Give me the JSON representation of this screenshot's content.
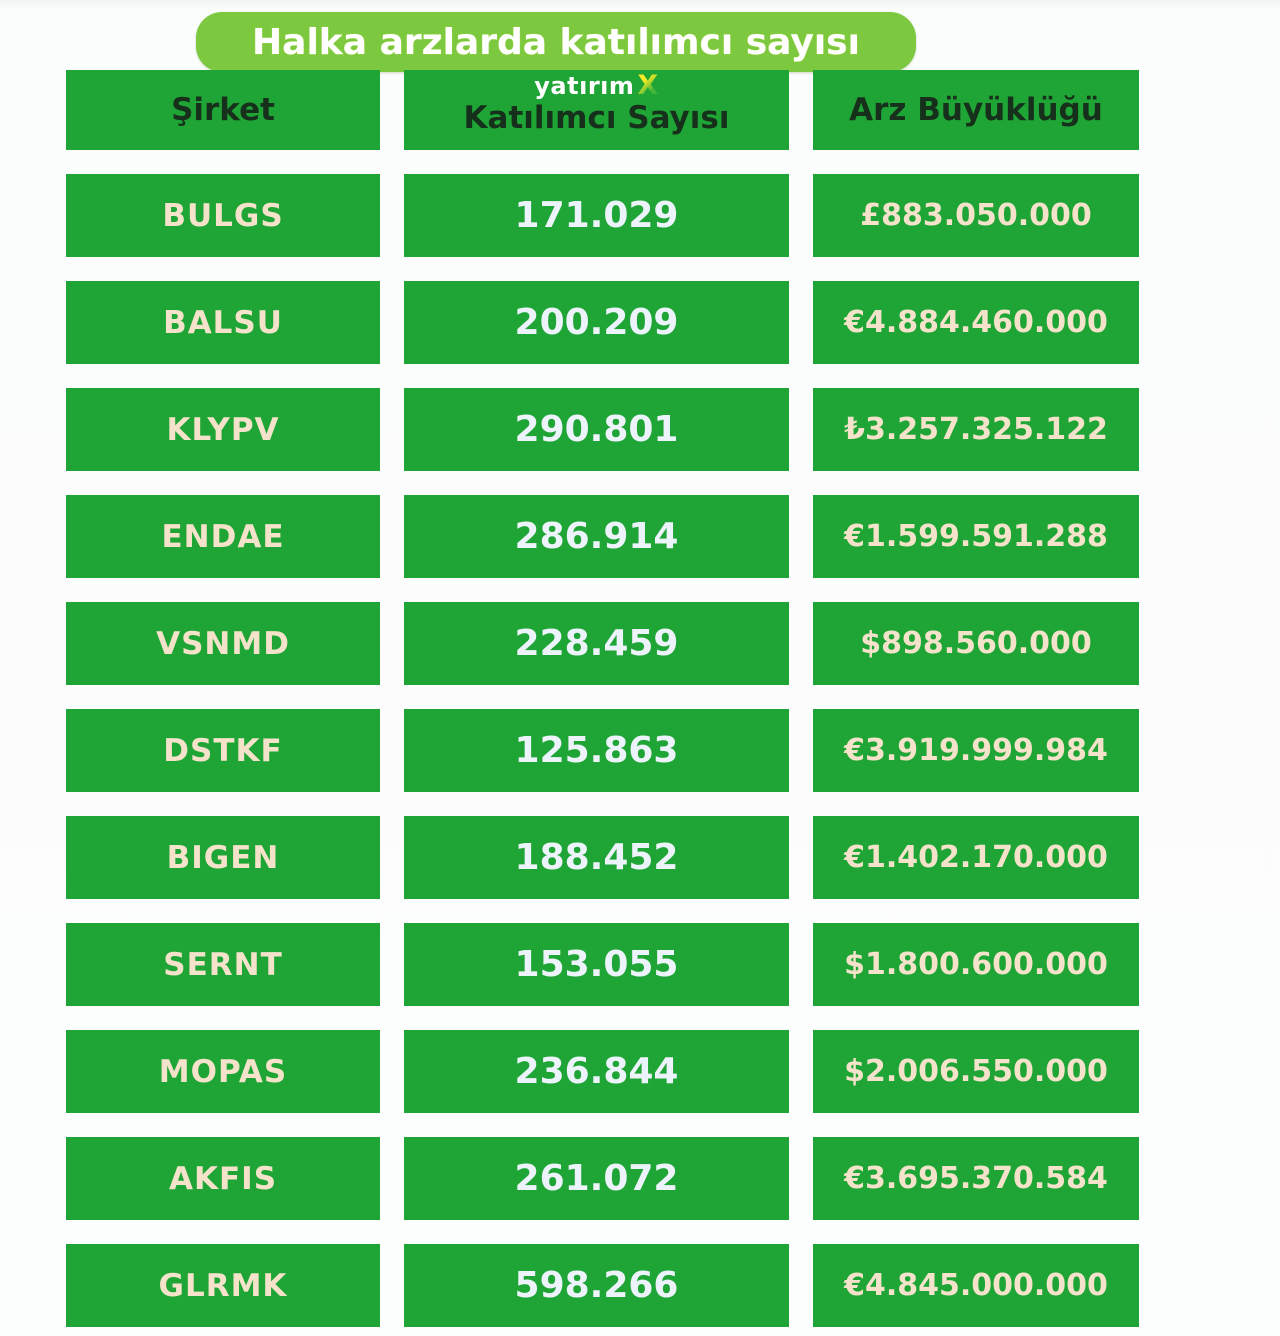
{
  "title": "Halka arzlarda katılımcı sayısı",
  "logo": {
    "text": "yatırım",
    "x": "X"
  },
  "table": {
    "headers": [
      "Şirket",
      "Katılımcı Sayısı",
      "Arz Büyüklüğü"
    ],
    "rows": [
      {
        "company": "BULGS",
        "participants": "171.029",
        "size": "£883.050.000"
      },
      {
        "company": "BALSU",
        "participants": "200.209",
        "size": "€4.884.460.000"
      },
      {
        "company": "KLYPV",
        "participants": "290.801",
        "size": "₺3.257.325.122"
      },
      {
        "company": "ENDAE",
        "participants": "286.914",
        "size": "€1.599.591.288"
      },
      {
        "company": "VSNMD",
        "participants": "228.459",
        "size": "$898.560.000"
      },
      {
        "company": "DSTKF",
        "participants": "125.863",
        "size": "€3.919.999.984"
      },
      {
        "company": "BIGEN",
        "participants": "188.452",
        "size": "€1.402.170.000"
      },
      {
        "company": "SERNT",
        "participants": "153.055",
        "size": "$1.800.600.000"
      },
      {
        "company": "MOPAS",
        "participants": "236.844",
        "size": "$2.006.550.000"
      },
      {
        "company": "AKFIS",
        "participants": "261.072",
        "size": "€3.695.370.584"
      },
      {
        "company": "GLRMK",
        "participants": "598.266",
        "size": "€4.845.000.000"
      }
    ]
  },
  "colors": {
    "cell_green": "#1fa535",
    "bubble_green": "#7cc83e",
    "header_text": "#16301b",
    "cream_text": "#f4e2ca",
    "number_text": "#edf3fb",
    "logo_x_yellow": "#f5ea24",
    "logo_x_green": "#44b63a",
    "background": "#fbfcfc"
  },
  "chart_data": {
    "type": "table",
    "title": "Halka arzlarda katılımcı sayısı",
    "columns": [
      "Şirket",
      "Katılımcı Sayısı",
      "Arz Büyüklüğü"
    ],
    "rows": [
      [
        "BULGS",
        "171.029",
        "£883.050.000"
      ],
      [
        "BALSU",
        "200.209",
        "€4.884.460.000"
      ],
      [
        "KLYPV",
        "290.801",
        "₺3.257.325.122"
      ],
      [
        "ENDAE",
        "286.914",
        "€1.599.591.288"
      ],
      [
        "VSNMD",
        "228.459",
        "$898.560.000"
      ],
      [
        "DSTKF",
        "125.863",
        "€3.919.999.984"
      ],
      [
        "BIGEN",
        "188.452",
        "€1.402.170.000"
      ],
      [
        "SERNT",
        "153.055",
        "$1.800.600.000"
      ],
      [
        "MOPAS",
        "236.844",
        "$2.006.550.000"
      ],
      [
        "AKFIS",
        "261.072",
        "€3.695.370.584"
      ],
      [
        "GLRMK",
        "598.266",
        "€4.845.000.000"
      ]
    ],
    "participants_numeric": [
      171029,
      200209,
      290801,
      286914,
      228459,
      125863,
      188452,
      153055,
      236844,
      261072,
      598266
    ]
  }
}
